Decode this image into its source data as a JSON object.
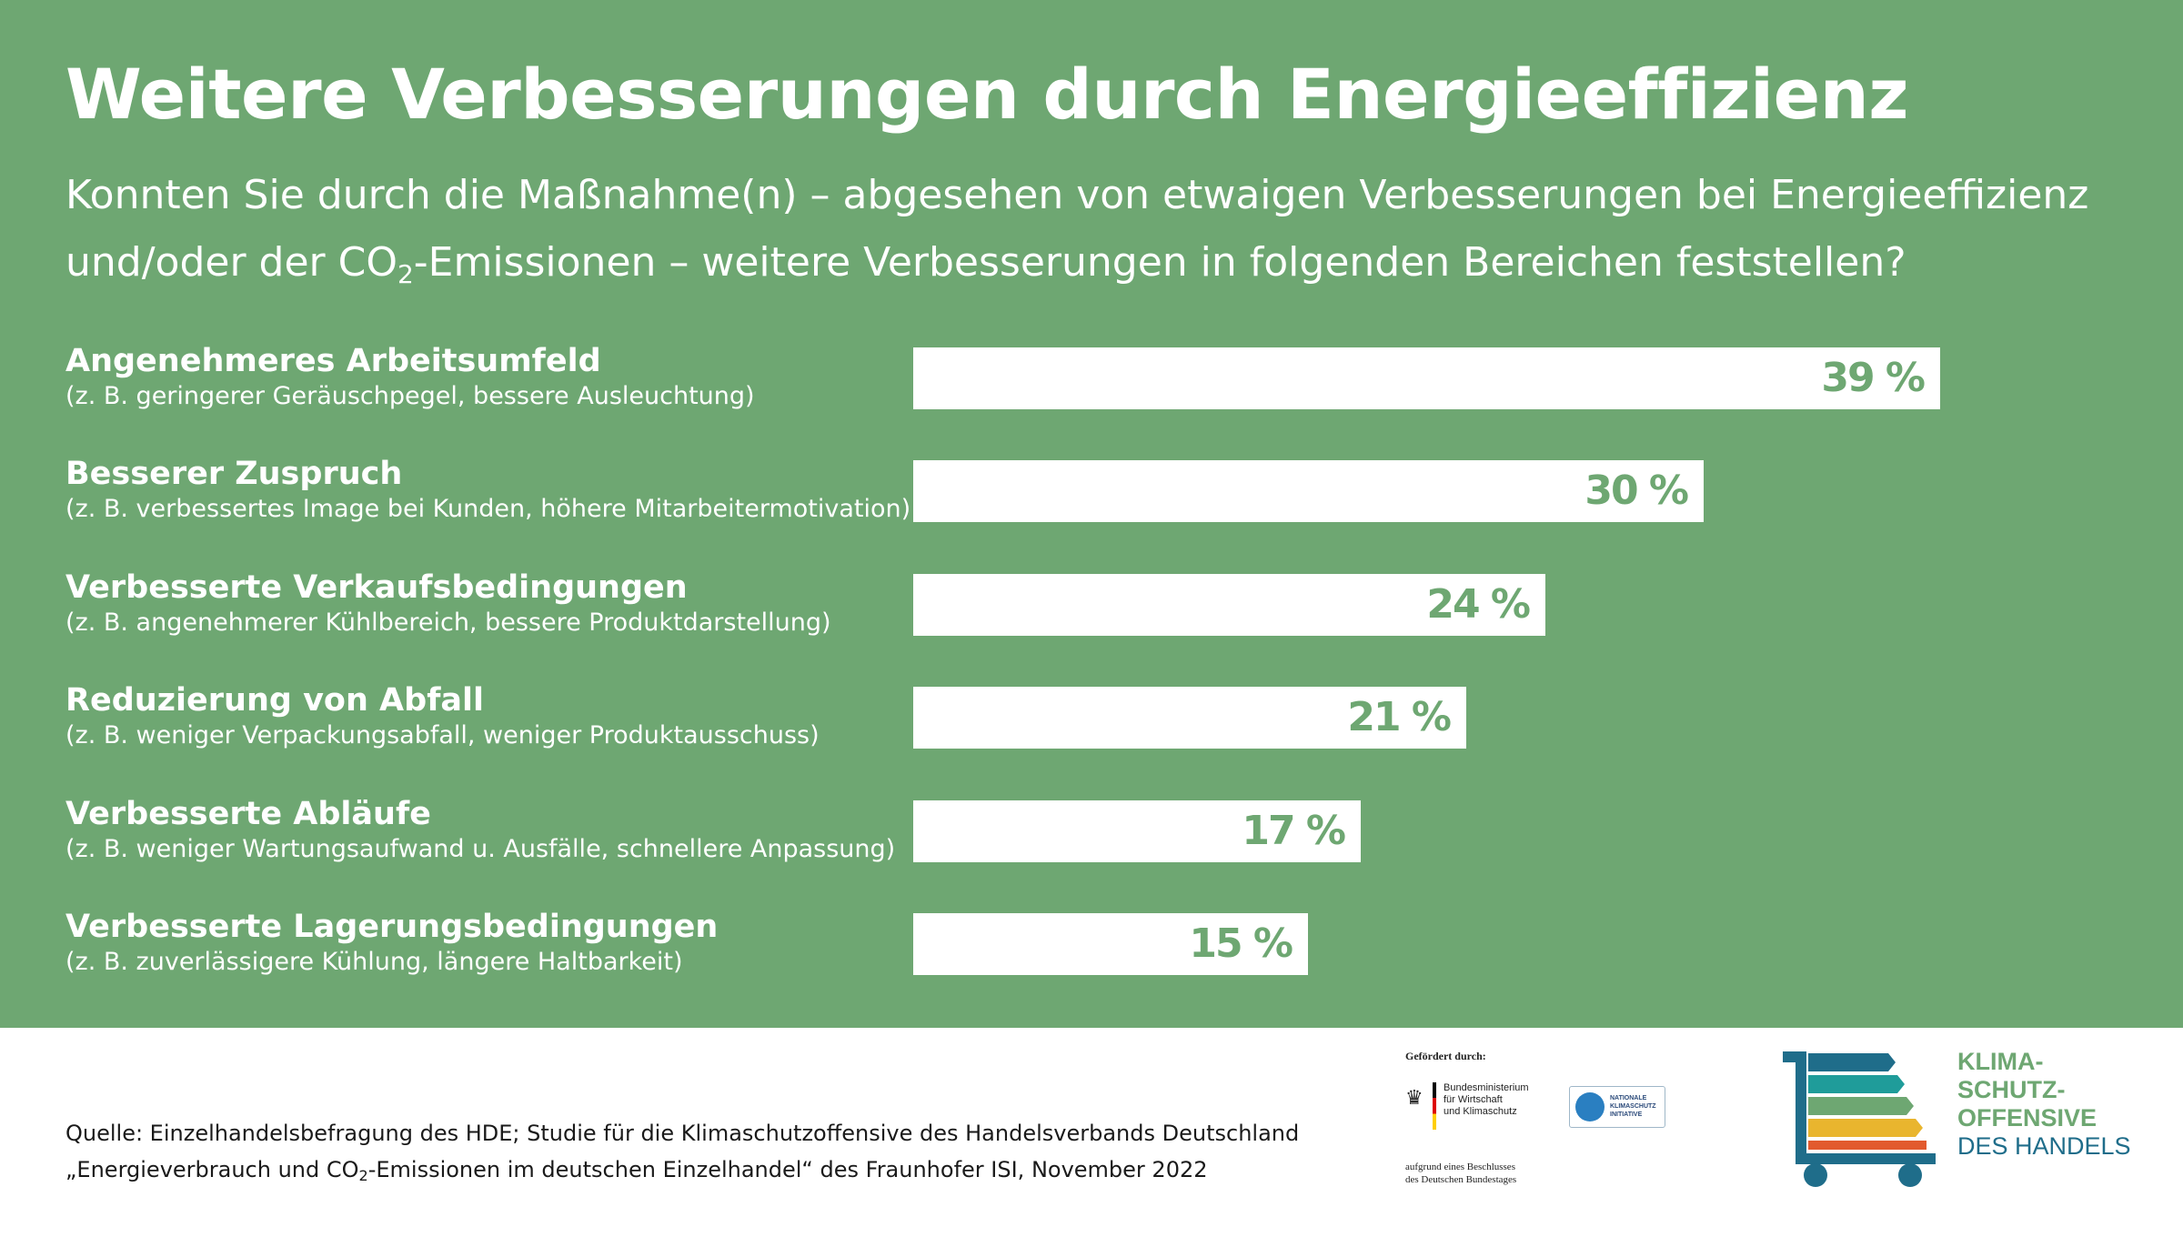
{
  "header": {
    "title": "Weitere Verbesserungen durch Energieeffizienz",
    "subtitle_line1": "Konnten Sie durch die Maßnahme(n) – abgesehen von etwaigen Verbesserungen bei Energieeffizienz",
    "subtitle_line2_pre": "und/oder der CO",
    "subtitle_line2_sub": "2",
    "subtitle_line2_post": "-Emissionen – weitere Verbesserungen in folgenden Bereichen feststellen?"
  },
  "chart_data": {
    "type": "bar",
    "orientation": "horizontal",
    "categories": [
      "Angenehmeres Arbeitsumfeld",
      "Besserer Zuspruch",
      "Verbesserte Verkaufsbedingungen",
      "Reduzierung von Abfall",
      "Verbesserte Abläufe",
      "Verbesserte Lagerungsbedingungen"
    ],
    "notes": [
      "(z. B. geringerer Geräuschpegel, bessere Ausleuchtung)",
      "(z. B. verbessertes Image bei Kunden, höhere Mitarbeitermotivation)",
      "(z. B. angenehmerer Kühlbereich, bessere Produktdarstellung)",
      "(z. B. weniger Verpackungsabfall, weniger Produktausschuss)",
      "(z. B. weniger Wartungsaufwand u. Ausfälle, schnellere Anpassung)",
      "(z. B. zuverlässigere Kühlung, längere Haltbarkeit)"
    ],
    "values": [
      39,
      30,
      24,
      21,
      17,
      15
    ],
    "value_labels": [
      "39 %",
      "30 %",
      "24 %",
      "21 %",
      "17 %",
      "15 %"
    ],
    "bar_color": "#ffffff",
    "value_color": "#6ea772",
    "background_color": "#6ea772"
  },
  "footer": {
    "source_line1": "Quelle: Einzelhandelsbefragung des HDE; Studie für die Klimaschutzoffensive des Handelsverbands Deutschland",
    "source_line2_pre": "„Energieverbrauch und CO",
    "source_line2_sub": "2",
    "source_line2_post": "-Emissionen im deutschen Einzelhandel“ des Fraunhofer ISI, November 2022",
    "funder_label": "Gefördert durch:",
    "ministry_line1": "Bundesministerium",
    "ministry_line2": "für Wirtschaft",
    "ministry_line3": "und Klimaschutz",
    "nki_line1": "NATIONALE",
    "nki_line2": "KLIMASCHUTZ",
    "nki_line3": "INITIATIVE",
    "resolution_line1": "aufgrund eines Beschlusses",
    "resolution_line2": "des Deutschen Bundestages"
  },
  "logo": {
    "line1": "KLIMA-",
    "line2": "SCHUTZ-",
    "line3": "OFFENSIVE",
    "line4": "DES HANDELS",
    "stripe_colors": [
      "#1f6d8a",
      "#1f9c9a",
      "#6ea772",
      "#e9b52e",
      "#e25a2e"
    ]
  }
}
